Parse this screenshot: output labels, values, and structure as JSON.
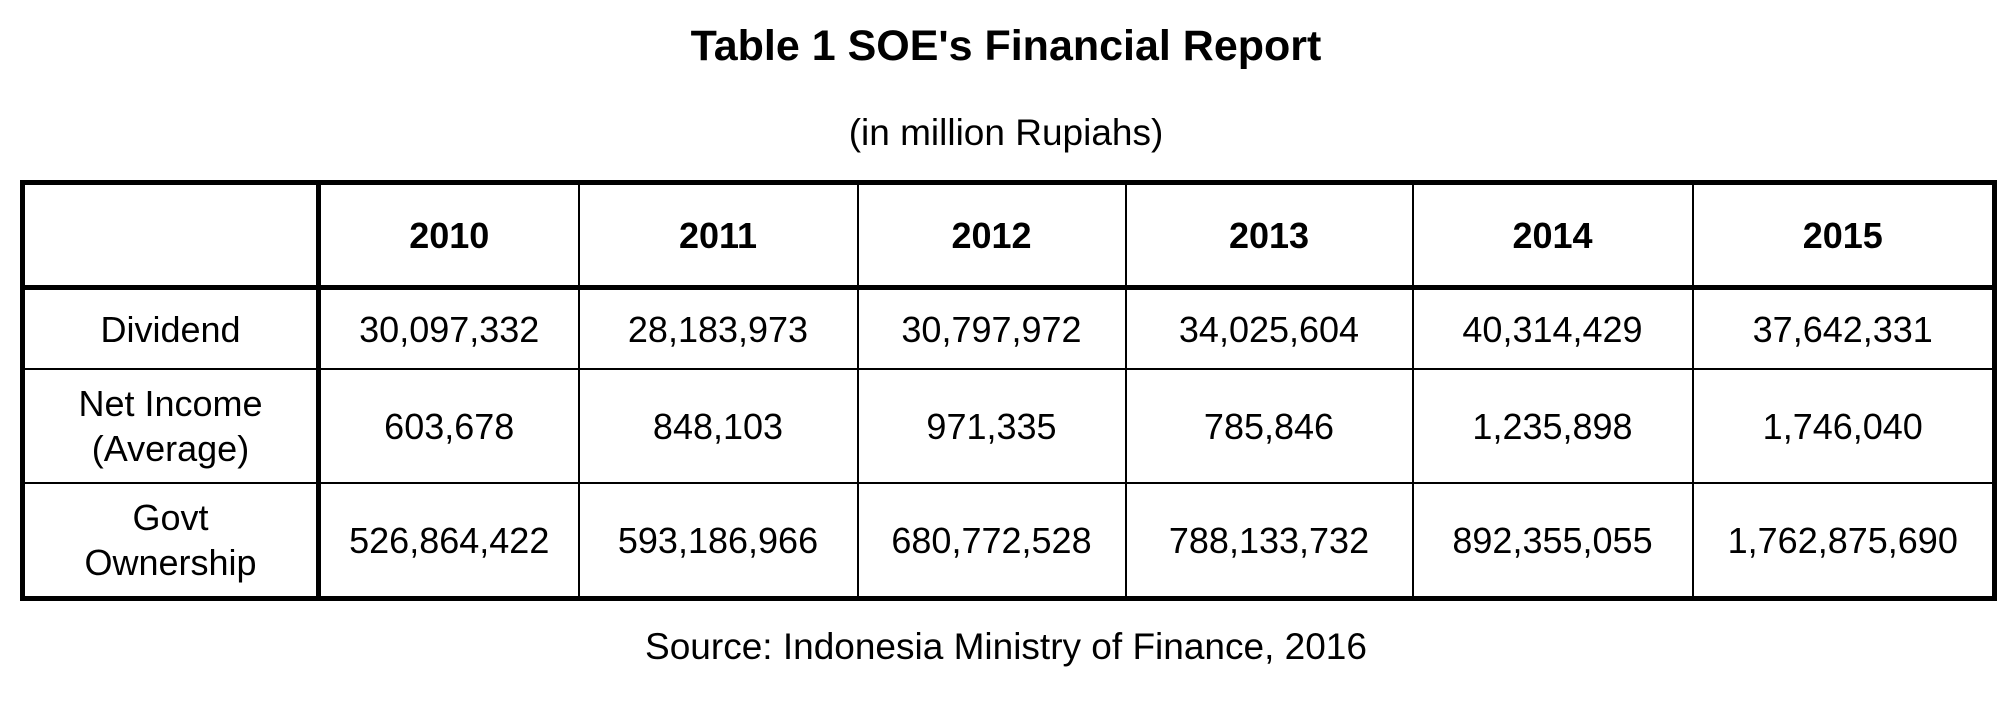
{
  "header": {
    "title": "Table 1 SOE's Financial Report",
    "subtitle": "(in million Rupiahs)"
  },
  "table": {
    "columns": [
      "2010",
      "2011",
      "2012",
      "2013",
      "2014",
      "2015"
    ],
    "rows": [
      {
        "label": [
          "Dividend"
        ],
        "cells": [
          "30,097,332",
          "28,183,973",
          "30,797,972",
          "34,025,604",
          "40,314,429",
          "37,642,331"
        ]
      },
      {
        "label": [
          "Net Income",
          "(Average)"
        ],
        "cells": [
          "603,678",
          "848,103",
          "971,335",
          "785,846",
          "1,235,898",
          "1,746,040"
        ]
      },
      {
        "label": [
          "Govt",
          "Ownership"
        ],
        "cells": [
          "526,864,422",
          "593,186,966",
          "680,772,528",
          "788,133,732",
          "892,355,055",
          "1,762,875,690"
        ]
      }
    ]
  },
  "footer": {
    "source": "Source: Indonesia Ministry of Finance, 2016"
  }
}
